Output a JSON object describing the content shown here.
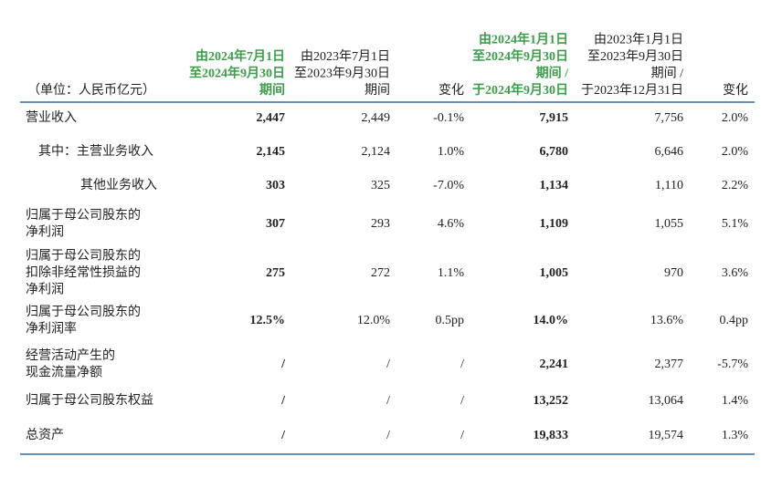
{
  "table": {
    "header": [
      [
        "（单位：人民币亿元）"
      ],
      [
        "由2024年7月1日",
        "至2024年9月30日",
        "期间"
      ],
      [
        "由2023年7月1日",
        "至2023年9月30日",
        "期间"
      ],
      [
        "变化"
      ],
      [
        "由2024年1月1日",
        "至2024年9月30日",
        "期间 /",
        "于2024年9月30日"
      ],
      [
        "由2023年1月1日",
        "至2023年9月30日",
        "期间 /",
        "于2023年12月31日"
      ],
      [
        "变化"
      ]
    ],
    "rows": [
      [
        [
          "营业收入"
        ],
        "2,447",
        "2,449",
        "-0.1%",
        "7,915",
        "7,756",
        "2.0%"
      ],
      [
        [
          "其中：主营业务收入"
        ],
        "2,145",
        "2,124",
        "1.0%",
        "6,780",
        "6,646",
        "2.0%"
      ],
      [
        [
          "其他业务收入"
        ],
        "303",
        "325",
        "-7.0%",
        "1,134",
        "1,110",
        "2.2%"
      ],
      [
        [
          "归属于母公司股东的",
          "净利润"
        ],
        "307",
        "293",
        "4.6%",
        "1,109",
        "1,055",
        "5.1%"
      ],
      [
        [
          "归属于母公司股东的",
          "扣除非经常性损益的",
          "净利润"
        ],
        "275",
        "272",
        "1.1%",
        "1,005",
        "970",
        "3.6%"
      ],
      [
        [
          "归属于母公司股东的",
          "净利润率"
        ],
        "12.5%",
        "12.0%",
        "0.5pp",
        "14.0%",
        "13.6%",
        "0.4pp"
      ],
      [
        [
          "经营活动产生的",
          "现金流量净额"
        ],
        "/",
        "/",
        "/",
        "2,241",
        "2,377",
        "-5.7%"
      ],
      [
        [
          "归属于母公司股东权益"
        ],
        "/",
        "/",
        "/",
        "13,252",
        "13,064",
        "1.4%"
      ],
      [
        [
          "总资产"
        ],
        "/",
        "/",
        "/",
        "19,833",
        "19,574",
        "1.3%"
      ]
    ]
  }
}
